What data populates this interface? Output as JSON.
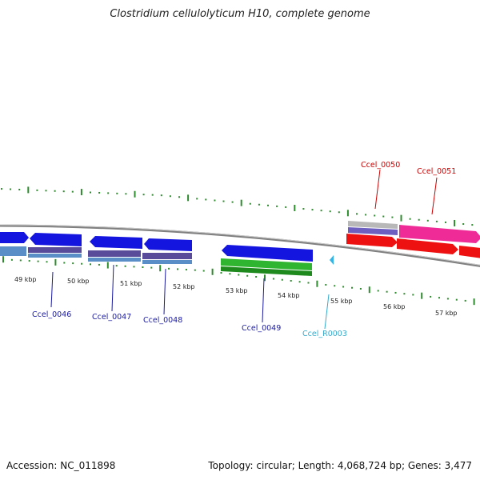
{
  "title": "Clostridium cellulolyticum H10, complete genome",
  "footer": {
    "accession": "Accession: NC_011898",
    "summary": "Topology: circular; Length: 4,068,724 bp; Genes: 3,477"
  },
  "colors": {
    "backbone": "#8a8a8a",
    "tick": "#2e8b2e",
    "cds_blue": "#1515e0",
    "cds_blue_light": "#5a8ec7",
    "cds_purple": "#5a4b9a",
    "cds_green": "#2fb52f",
    "cds_red": "#ee1111",
    "cds_magenta": "#ee2b96",
    "rna_cyan": "#33b5e5",
    "label_blue": "#1a1aa0",
    "label_red": "#cc0000",
    "label_cyan": "#33aacc"
  },
  "kbp_labels": [
    "49 kbp",
    "50 kbp",
    "51 kbp",
    "52 kbp",
    "53 kbp",
    "54 kbp",
    "55 kbp",
    "56 kbp",
    "57 kbp"
  ],
  "features": [
    {
      "name": "Ccel_0046",
      "color": "label_blue"
    },
    {
      "name": "Ccel_0047",
      "color": "label_blue"
    },
    {
      "name": "Ccel_0048",
      "color": "label_blue"
    },
    {
      "name": "Ccel_0049",
      "color": "label_blue"
    },
    {
      "name": "Ccel_R0003",
      "color": "label_cyan"
    },
    {
      "name": "Ccel_0050",
      "color": "label_red"
    },
    {
      "name": "Ccel_0051",
      "color": "label_red"
    }
  ]
}
